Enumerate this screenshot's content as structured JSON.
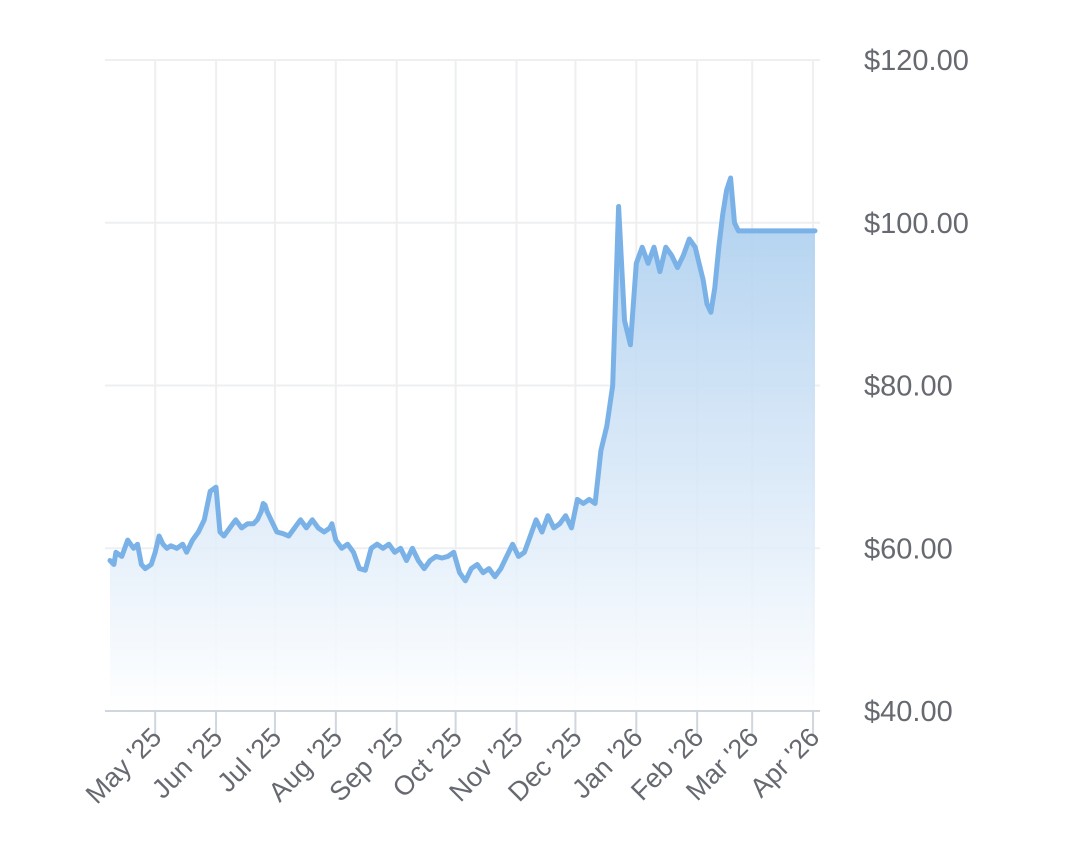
{
  "chart_data": {
    "type": "area",
    "y_tick_labels": [
      "$40.00",
      "$60.00",
      "$80.00",
      "$100.00",
      "$120.00"
    ],
    "y_ticks": [
      40,
      60,
      80,
      100,
      120
    ],
    "ylim": [
      40,
      120
    ],
    "x_tick_labels": [
      "May '25",
      "Jun '25",
      "Jul '25",
      "Aug '25",
      "Sep '25",
      "Oct '25",
      "Nov '25",
      "Dec '25",
      "Jan '26",
      "Feb '26",
      "Mar '26",
      "Apr '26"
    ],
    "x_tick_dates": [
      "2025-05-01",
      "2025-06-01",
      "2025-07-01",
      "2025-08-01",
      "2025-09-01",
      "2025-10-01",
      "2025-11-01",
      "2025-12-01",
      "2026-01-01",
      "2026-02-01",
      "2026-03-01",
      "2026-04-01"
    ],
    "xlim": [
      "2025-04-08",
      "2026-04-02"
    ],
    "grid": true,
    "y_axis_side": "right",
    "line_color": "#7ab2e8",
    "fill_color_top": "#a9cdee",
    "fill_color_bottom": "#ffffff",
    "series": [
      {
        "x": [
          "2025-04-08",
          "2025-04-10",
          "2025-04-11",
          "2025-04-14",
          "2025-04-17",
          "2025-04-20",
          "2025-04-22",
          "2025-04-24",
          "2025-04-26",
          "2025-04-29",
          "2025-05-01",
          "2025-05-02",
          "2025-05-03",
          "2025-05-05",
          "2025-05-07",
          "2025-05-09",
          "2025-05-12",
          "2025-05-15",
          "2025-05-17",
          "2025-05-20",
          "2025-05-23",
          "2025-05-26",
          "2025-05-29",
          "2025-06-01",
          "2025-06-03",
          "2025-06-05",
          "2025-06-08",
          "2025-06-11",
          "2025-06-14",
          "2025-06-17",
          "2025-06-20",
          "2025-06-22",
          "2025-06-24",
          "2025-06-25",
          "2025-06-26",
          "2025-06-27",
          "2025-06-29",
          "2025-07-02",
          "2025-07-05",
          "2025-07-08",
          "2025-07-11",
          "2025-07-14",
          "2025-07-17",
          "2025-07-20",
          "2025-07-23",
          "2025-07-26",
          "2025-07-29",
          "2025-07-30",
          "2025-08-01",
          "2025-08-04",
          "2025-08-07",
          "2025-08-10",
          "2025-08-13",
          "2025-08-16",
          "2025-08-19",
          "2025-08-22",
          "2025-08-25",
          "2025-08-28",
          "2025-08-31",
          "2025-09-03",
          "2025-09-06",
          "2025-09-09",
          "2025-09-12",
          "2025-09-15",
          "2025-09-18",
          "2025-09-21",
          "2025-09-24",
          "2025-09-27",
          "2025-09-30",
          "2025-10-03",
          "2025-10-06",
          "2025-10-09",
          "2025-10-12",
          "2025-10-15",
          "2025-10-18",
          "2025-10-21",
          "2025-10-24",
          "2025-10-27",
          "2025-10-30",
          "2025-11-02",
          "2025-11-05",
          "2025-11-08",
          "2025-11-11",
          "2025-11-14",
          "2025-11-17",
          "2025-11-20",
          "2025-11-23",
          "2025-11-26",
          "2025-11-29",
          "2025-12-02",
          "2025-12-05",
          "2025-12-08",
          "2025-12-11",
          "2025-12-14",
          "2025-12-17",
          "2025-12-20",
          "2025-12-23",
          "2025-12-26",
          "2025-12-29",
          "2026-01-01",
          "2026-01-04",
          "2026-01-07",
          "2026-01-10",
          "2026-01-13",
          "2026-01-16",
          "2026-01-19",
          "2026-01-22",
          "2026-01-25",
          "2026-01-28",
          "2026-01-31",
          "2026-02-02",
          "2026-02-04",
          "2026-02-06",
          "2026-02-08",
          "2026-02-10",
          "2026-02-12",
          "2026-02-14",
          "2026-02-16",
          "2026-02-18",
          "2026-02-20",
          "2026-02-22",
          "2026-02-24",
          "2026-02-26",
          "2026-02-28",
          "2026-03-01",
          "2026-03-02",
          "2026-03-03",
          "2026-03-04",
          "2026-03-05",
          "2026-03-06",
          "2026-03-07",
          "2026-03-08",
          "2026-03-09",
          "2026-03-10",
          "2026-03-11",
          "2026-03-12",
          "2026-03-13",
          "2026-03-14",
          "2026-03-15",
          "2026-03-16",
          "2026-03-17",
          "2026-03-18",
          "2026-03-19",
          "2026-03-20",
          "2026-03-21",
          "2026-03-22",
          "2026-03-23",
          "2026-03-24",
          "2026-03-25",
          "2026-03-26",
          "2026-03-27",
          "2026-03-28",
          "2026-03-29",
          "2026-03-30",
          "2026-03-31",
          "2026-04-01",
          "2026-04-02"
        ],
        "y": [
          58.5,
          58.0,
          59.5,
          59.0,
          61.0,
          60.0,
          60.5,
          58.0,
          57.5,
          58.0,
          59.5,
          60.5,
          61.5,
          60.5,
          60.0,
          60.3,
          60.0,
          60.5,
          59.5,
          61.0,
          62.0,
          63.5,
          67.0,
          67.5,
          62.0,
          61.5,
          62.5,
          63.5,
          62.5,
          63.0,
          63.0,
          63.5,
          64.5,
          65.5,
          65.3,
          64.5,
          63.5,
          62.0,
          61.8,
          61.5,
          62.5,
          63.5,
          62.5,
          63.5,
          62.5,
          62.0,
          62.5,
          63.0,
          61.0,
          60.0,
          60.5,
          59.5,
          57.5,
          57.3,
          60.0,
          60.5,
          60.0,
          60.5,
          59.5,
          60.0,
          58.5,
          60.0,
          58.5,
          57.5,
          58.5,
          59.0,
          58.8,
          59.0,
          59.5,
          57.0,
          56.0,
          57.5,
          58.0,
          57.0,
          57.5,
          56.5,
          57.5,
          59.0,
          60.5,
          59.0,
          59.5,
          61.5,
          63.5,
          62.0,
          64.0,
          62.5,
          63.0,
          64.0,
          62.5,
          66.0,
          65.5,
          66.0,
          65.5,
          72.0,
          75.0,
          80.0,
          102.0,
          88.0,
          85.0,
          95.0,
          97.0,
          95.0,
          97.0,
          94.0,
          97.0,
          96.0,
          94.5,
          96.0,
          98.0,
          97.0,
          95.0,
          93.0,
          90.0,
          89.0,
          92.0,
          97.0,
          101.0,
          104.0,
          105.5,
          100.0,
          99.0,
          99.0,
          99.0,
          99.0,
          99.0,
          99.0,
          99.0,
          99.0,
          99.0,
          99.0,
          99.0,
          99.0,
          99.0,
          99.0,
          99.0,
          99.0,
          99.0,
          99.0,
          99.0,
          99.0,
          99.0,
          99.0,
          99.0,
          99.0,
          99.0,
          99.0,
          99.0,
          99.0,
          99.0,
          99.0,
          99.0,
          99.0,
          99.0,
          99.0,
          99.0,
          99.0,
          99.0
        ]
      }
    ]
  }
}
